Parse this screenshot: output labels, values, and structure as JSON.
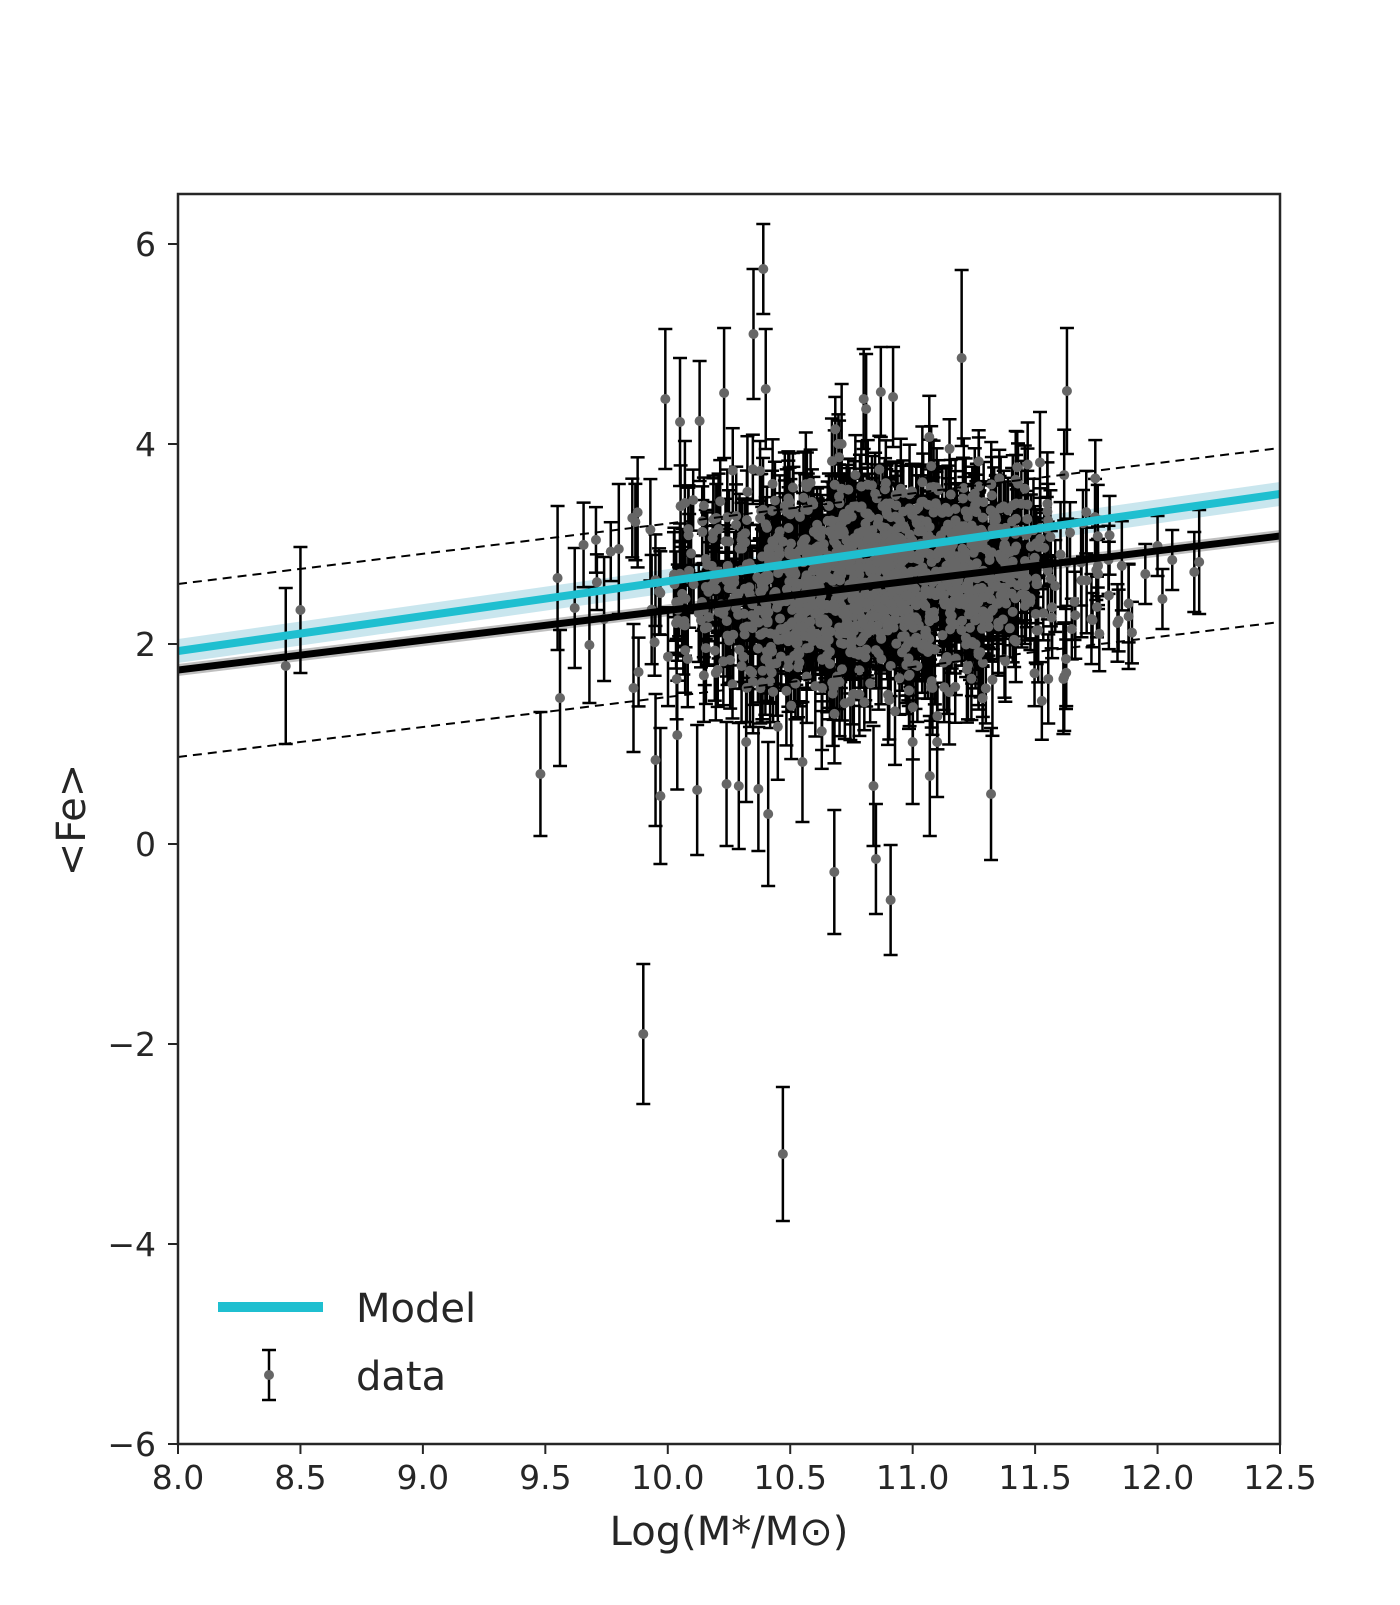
{
  "chart_data": {
    "type": "scatter",
    "xlabel": "Log(M*/M⊙)",
    "ylabel": "<Fe>",
    "xlim": [
      8.0,
      12.5
    ],
    "ylim": [
      -6,
      6.5
    ],
    "x_ticks": [
      "8.0",
      "8.5",
      "9.0",
      "9.5",
      "10.0",
      "10.5",
      "11.0",
      "11.5",
      "12.0",
      "12.5"
    ],
    "y_ticks": [
      "−6",
      "−4",
      "−2",
      "0",
      "2",
      "4",
      "6"
    ],
    "grid": false,
    "legend": {
      "position": "lower-left",
      "entries": [
        "Model",
        "data"
      ]
    },
    "colors": {
      "model": "#1fbfd0",
      "model_band": "#b7dde8",
      "fit": "#000000",
      "fit_band": "#a9a9a9",
      "points": "#666666",
      "errorbars": "#000000"
    },
    "series": [
      {
        "name": "Model",
        "kind": "line",
        "x": [
          8.0,
          12.5
        ],
        "y": [
          1.93,
          3.5
        ],
        "band_halfwidth": 0.12
      },
      {
        "kind": "line",
        "role": "fit",
        "x": [
          8.0,
          12.5
        ],
        "y": [
          1.74,
          3.08
        ],
        "band_halfwidth": 0.06
      },
      {
        "kind": "line",
        "role": "scatter-upper",
        "style": "dashed",
        "x": [
          8.0,
          12.5
        ],
        "y": [
          2.6,
          3.96
        ]
      },
      {
        "kind": "line",
        "role": "scatter-lower",
        "style": "dashed",
        "x": [
          8.0,
          12.5
        ],
        "y": [
          0.87,
          2.22
        ]
      },
      {
        "name": "data",
        "kind": "errorbar",
        "note": "representative points read from the figure; dense cloud centred near x=10.85, y=2.6",
        "points": [
          {
            "x": 8.44,
            "y": 1.78,
            "err": 0.78
          },
          {
            "x": 8.5,
            "y": 2.34,
            "err": 0.63
          },
          {
            "x": 9.48,
            "y": 0.7,
            "err": 0.62
          },
          {
            "x": 9.55,
            "y": 2.66,
            "err": 0.72
          },
          {
            "x": 9.56,
            "y": 1.46,
            "err": 0.68
          },
          {
            "x": 9.62,
            "y": 2.36,
            "err": 0.6
          },
          {
            "x": 9.68,
            "y": 1.99,
            "err": 0.58
          },
          {
            "x": 9.74,
            "y": 2.25,
            "err": 0.62
          },
          {
            "x": 9.8,
            "y": 2.95,
            "err": 0.65
          },
          {
            "x": 9.86,
            "y": 1.56,
            "err": 0.64
          },
          {
            "x": 9.9,
            "y": -1.9,
            "err": 0.7
          },
          {
            "x": 9.95,
            "y": 0.84,
            "err": 0.66
          },
          {
            "x": 9.97,
            "y": 0.48,
            "err": 0.68
          },
          {
            "x": 9.99,
            "y": 4.45,
            "err": 0.7
          },
          {
            "x": 10.05,
            "y": 4.22,
            "err": 0.64
          },
          {
            "x": 10.07,
            "y": 3.41,
            "err": 0.62
          },
          {
            "x": 10.12,
            "y": 0.54,
            "err": 0.65
          },
          {
            "x": 10.13,
            "y": 4.23,
            "err": 0.6
          },
          {
            "x": 10.23,
            "y": 4.51,
            "err": 0.65
          },
          {
            "x": 10.24,
            "y": 0.6,
            "err": 0.62
          },
          {
            "x": 10.29,
            "y": 0.58,
            "err": 0.63
          },
          {
            "x": 10.32,
            "y": 1.02,
            "err": 0.6
          },
          {
            "x": 10.35,
            "y": 5.1,
            "err": 0.65
          },
          {
            "x": 10.37,
            "y": 0.55,
            "err": 0.62
          },
          {
            "x": 10.39,
            "y": 5.75,
            "err": 0.45
          },
          {
            "x": 10.4,
            "y": 4.55,
            "err": 0.6
          },
          {
            "x": 10.41,
            "y": 0.3,
            "err": 0.72
          },
          {
            "x": 10.47,
            "y": -3.1,
            "err": 0.67
          },
          {
            "x": 10.55,
            "y": 0.82,
            "err": 0.6
          },
          {
            "x": 10.63,
            "y": 1.56,
            "err": 0.62
          },
          {
            "x": 10.68,
            "y": -0.28,
            "err": 0.62
          },
          {
            "x": 10.71,
            "y": 4.0,
            "err": 0.6
          },
          {
            "x": 10.8,
            "y": 4.45,
            "err": 0.5
          },
          {
            "x": 10.81,
            "y": 4.35,
            "err": 0.55
          },
          {
            "x": 10.84,
            "y": 0.58,
            "err": 0.6
          },
          {
            "x": 10.85,
            "y": -0.15,
            "err": 0.55
          },
          {
            "x": 10.87,
            "y": 4.52,
            "err": 0.45
          },
          {
            "x": 10.91,
            "y": -0.56,
            "err": 0.55
          },
          {
            "x": 10.92,
            "y": 4.47,
            "err": 0.5
          },
          {
            "x": 11.0,
            "y": 1.02,
            "err": 0.62
          },
          {
            "x": 11.07,
            "y": 0.68,
            "err": 0.6
          },
          {
            "x": 11.1,
            "y": 1.02,
            "err": 0.55
          },
          {
            "x": 11.2,
            "y": 4.86,
            "err": 0.88
          },
          {
            "x": 11.32,
            "y": 0.5,
            "err": 0.66
          },
          {
            "x": 11.63,
            "y": 4.53,
            "err": 0.63
          },
          {
            "x": 11.75,
            "y": 2.74,
            "err": 0.3
          },
          {
            "x": 11.95,
            "y": 2.7,
            "err": 0.3
          },
          {
            "x": 12.0,
            "y": 2.98,
            "err": 0.3
          },
          {
            "x": 12.02,
            "y": 2.45,
            "err": 0.3
          },
          {
            "x": 12.06,
            "y": 2.84,
            "err": 0.3
          },
          {
            "x": 12.15,
            "y": 2.72,
            "err": 0.4
          },
          {
            "x": 12.17,
            "y": 2.82,
            "err": 0.52
          }
        ],
        "cloud": {
          "center_x": 10.85,
          "center_y": 2.6,
          "x_spread": 0.38,
          "y_spread": 0.48,
          "count": 1400,
          "typical_err": 0.42
        }
      }
    ]
  }
}
